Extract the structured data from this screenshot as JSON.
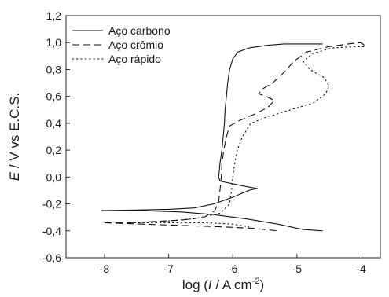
{
  "chart_data": {
    "type": "line",
    "xlabel": {
      "prefix": "log (",
      "var": "I",
      "mid": " / A cm",
      "sup": "-2",
      "suffix": ")"
    },
    "ylabel": {
      "var": "E",
      "rest": " / V vs E.C.S."
    },
    "xlim": [
      -8.6,
      -3.7
    ],
    "ylim": [
      -0.6,
      1.2
    ],
    "x_ticks": [
      -8,
      -7,
      -6,
      -5,
      -4
    ],
    "x_tick_labels": [
      "-8",
      "-7",
      "-6",
      "-5",
      "-4"
    ],
    "y_ticks": [
      -0.6,
      -0.4,
      -0.2,
      0.0,
      0.2,
      0.4,
      0.6,
      0.8,
      1.0,
      1.2
    ],
    "y_tick_labels": [
      "-0,6",
      "-0,4",
      "-0,2",
      "0,0",
      "0,2",
      "0,4",
      "0,6",
      "0,8",
      "1,0",
      "1,2"
    ],
    "legend_position": "top-left",
    "series": [
      {
        "name": "Aço carbono",
        "dash": "solid",
        "points": [
          [
            -8.05,
            -0.25
          ],
          [
            -7.5,
            -0.245
          ],
          [
            -7.0,
            -0.24
          ],
          [
            -6.6,
            -0.23
          ],
          [
            -6.3,
            -0.2
          ],
          [
            -6.0,
            -0.15
          ],
          [
            -5.75,
            -0.1
          ],
          [
            -5.62,
            -0.085
          ],
          [
            -5.8,
            -0.07
          ],
          [
            -6.0,
            -0.05
          ],
          [
            -6.2,
            -0.03
          ],
          [
            -6.22,
            0.0
          ],
          [
            -6.2,
            0.1
          ],
          [
            -6.17,
            0.2
          ],
          [
            -6.15,
            0.3
          ],
          [
            -6.13,
            0.4
          ],
          [
            -6.12,
            0.5
          ],
          [
            -6.1,
            0.6
          ],
          [
            -6.08,
            0.7
          ],
          [
            -6.05,
            0.8
          ],
          [
            -6.0,
            0.88
          ],
          [
            -5.92,
            0.93
          ],
          [
            -5.75,
            0.96
          ],
          [
            -5.45,
            0.98
          ],
          [
            -5.2,
            0.99
          ],
          [
            -4.95,
            0.99
          ],
          [
            -4.6,
            0.99
          ]
        ],
        "points_cathodic": [
          [
            -8.05,
            -0.25
          ],
          [
            -7.4,
            -0.25
          ],
          [
            -6.8,
            -0.26
          ],
          [
            -6.3,
            -0.28
          ],
          [
            -5.8,
            -0.31
          ],
          [
            -5.3,
            -0.35
          ],
          [
            -4.9,
            -0.39
          ],
          [
            -4.6,
            -0.4
          ]
        ]
      },
      {
        "name": "Aço crômio",
        "dash": "dashed",
        "points": [
          [
            -8.0,
            -0.34
          ],
          [
            -7.6,
            -0.34
          ],
          [
            -7.2,
            -0.33
          ],
          [
            -6.8,
            -0.32
          ],
          [
            -6.45,
            -0.3
          ],
          [
            -6.28,
            -0.25
          ],
          [
            -6.22,
            -0.18
          ],
          [
            -6.2,
            -0.1
          ],
          [
            -6.18,
            0.0
          ],
          [
            -6.17,
            0.1
          ],
          [
            -6.14,
            0.2
          ],
          [
            -6.1,
            0.3
          ],
          [
            -6.05,
            0.38
          ],
          [
            -5.9,
            0.42
          ],
          [
            -5.65,
            0.47
          ],
          [
            -5.45,
            0.52
          ],
          [
            -5.35,
            0.57
          ],
          [
            -5.48,
            0.6
          ],
          [
            -5.6,
            0.62
          ],
          [
            -5.52,
            0.66
          ],
          [
            -5.38,
            0.7
          ],
          [
            -5.2,
            0.78
          ],
          [
            -5.05,
            0.86
          ],
          [
            -4.85,
            0.93
          ],
          [
            -4.5,
            0.97
          ],
          [
            -4.2,
            0.99
          ],
          [
            -4.0,
            1.0
          ],
          [
            -3.95,
            0.98
          ]
        ],
        "points_cathodic": [
          [
            -8.0,
            -0.34
          ],
          [
            -7.4,
            -0.35
          ],
          [
            -6.8,
            -0.36
          ],
          [
            -6.2,
            -0.37
          ],
          [
            -5.7,
            -0.38
          ],
          [
            -5.3,
            -0.4
          ]
        ]
      },
      {
        "name": "Aço rápido",
        "dash": "dotted",
        "points": [
          [
            -7.6,
            -0.34
          ],
          [
            -7.1,
            -0.33
          ],
          [
            -6.6,
            -0.31
          ],
          [
            -6.2,
            -0.27
          ],
          [
            -6.05,
            -0.2
          ],
          [
            -6.02,
            -0.1
          ],
          [
            -6.0,
            0.0
          ],
          [
            -5.97,
            0.1
          ],
          [
            -5.93,
            0.2
          ],
          [
            -5.85,
            0.3
          ],
          [
            -5.72,
            0.4
          ],
          [
            -5.45,
            0.45
          ],
          [
            -5.1,
            0.5
          ],
          [
            -4.75,
            0.55
          ],
          [
            -4.55,
            0.62
          ],
          [
            -4.5,
            0.68
          ],
          [
            -4.58,
            0.74
          ],
          [
            -4.8,
            0.8
          ],
          [
            -4.9,
            0.86
          ],
          [
            -4.75,
            0.92
          ],
          [
            -4.45,
            0.96
          ],
          [
            -4.1,
            0.97
          ],
          [
            -3.95,
            0.97
          ]
        ],
        "points_cathodic": [
          [
            -7.6,
            -0.34
          ],
          [
            -7.0,
            -0.34
          ],
          [
            -6.4,
            -0.34
          ],
          [
            -6.0,
            -0.35
          ],
          [
            -5.75,
            -0.37
          ]
        ]
      }
    ]
  }
}
